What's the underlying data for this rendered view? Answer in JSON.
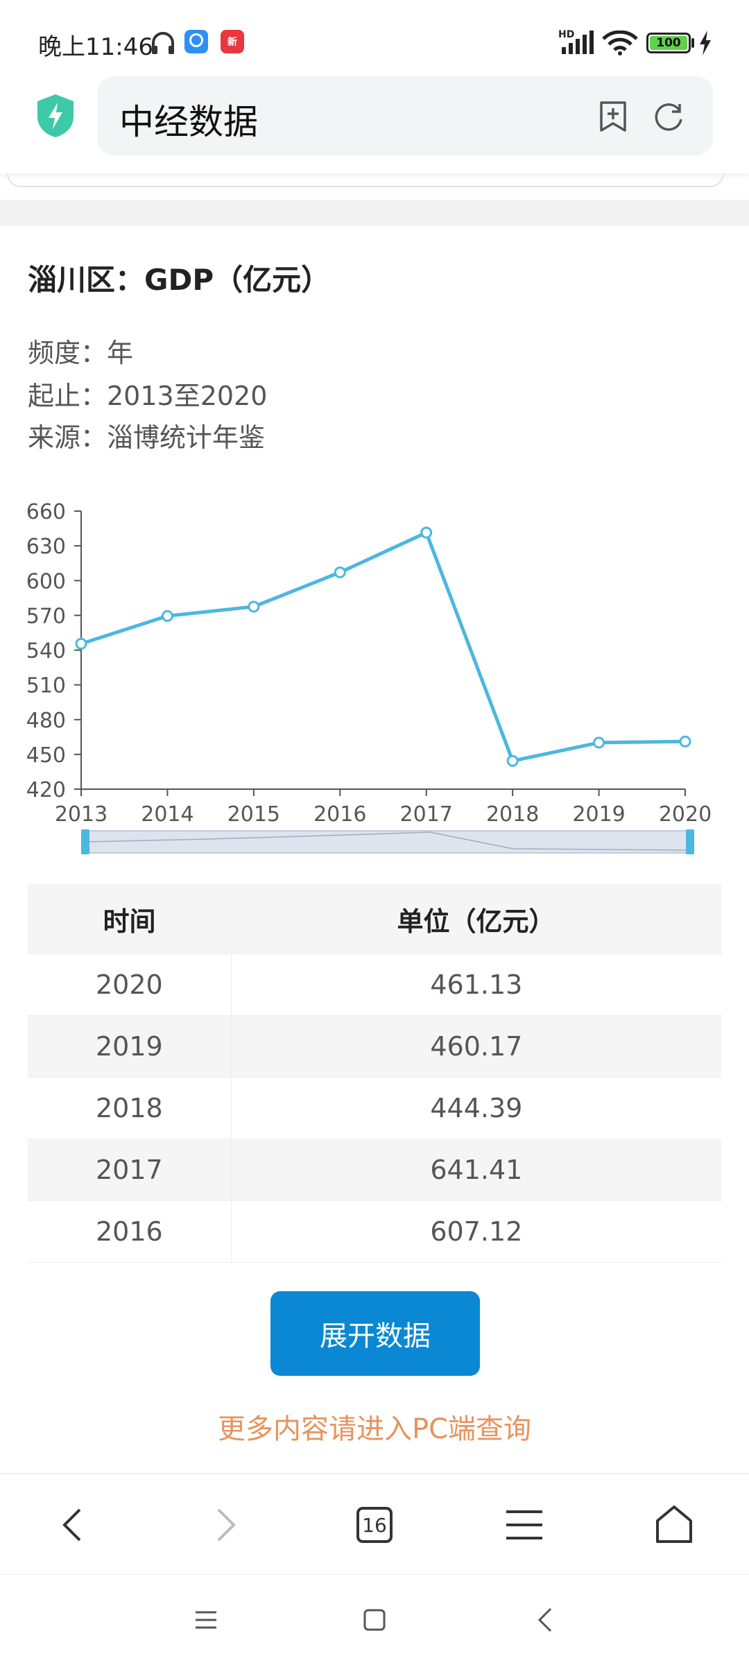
{
  "status_bar": {
    "time": "晚上11:46",
    "badge_news": "新",
    "hd": "HD",
    "battery": "100"
  },
  "browser": {
    "url_text": "中经数据"
  },
  "page": {
    "title": "淄川区：GDP（亿元）",
    "frequency": "频度：年",
    "range": "起止：2013至2020",
    "source": "来源：淄博统计年鉴"
  },
  "chart_data": {
    "type": "line",
    "title": "",
    "xlabel": "",
    "ylabel": "",
    "categories": [
      "2013",
      "2014",
      "2015",
      "2016",
      "2017",
      "2018",
      "2019",
      "2020"
    ],
    "values": [
      545.5,
      569.5,
      577.5,
      607.12,
      641.41,
      444.39,
      460.17,
      461.13
    ],
    "ylim": [
      420,
      660
    ],
    "yticks": [
      "660",
      "630",
      "600",
      "570",
      "540",
      "510",
      "480",
      "450",
      "420"
    ],
    "color": "#4cb7df",
    "grid": false
  },
  "table": {
    "headers": [
      "时间",
      "单位（亿元）"
    ],
    "rows": [
      [
        "2020",
        "461.13"
      ],
      [
        "2019",
        "460.17"
      ],
      [
        "2018",
        "444.39"
      ],
      [
        "2017",
        "641.41"
      ],
      [
        "2016",
        "607.12"
      ]
    ]
  },
  "buttons": {
    "expand": "展开数据",
    "more": "更多内容请进入PC端查询"
  },
  "bottom_nav": {
    "tab_count": "16"
  },
  "colors": {
    "accent": "#0a88d3",
    "line": "#4cb7df",
    "link": "#e7935d"
  }
}
